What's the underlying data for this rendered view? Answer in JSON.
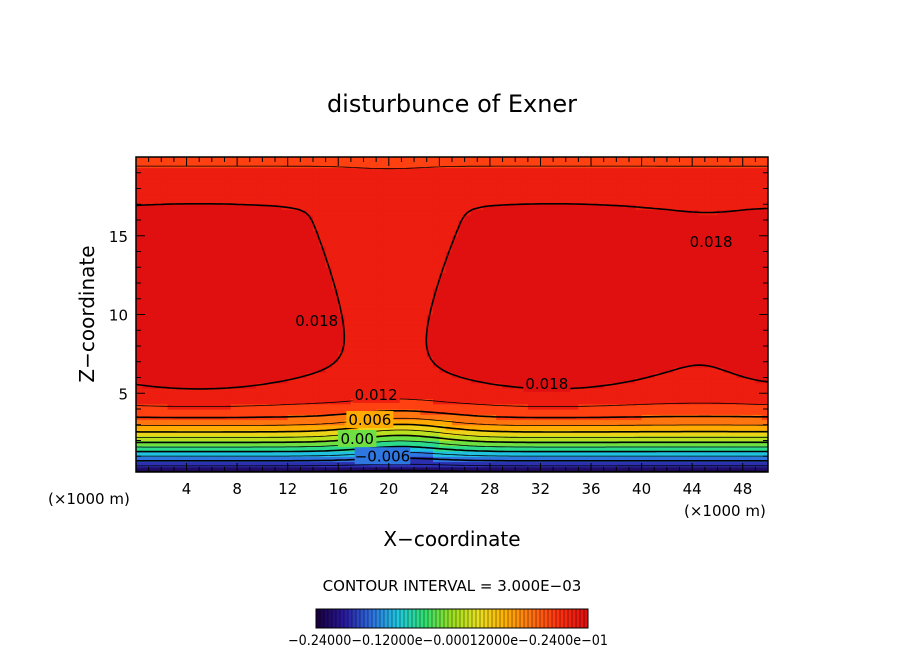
{
  "chart_data": {
    "type": "contour",
    "title": "disturbunce of Exner",
    "xlabel": "X−coordinate",
    "ylabel": "Z−coordinate",
    "x_unit_left": "(×1000 m)",
    "x_unit_right": "(×1000 m)",
    "xlim": [
      0,
      50
    ],
    "ylim": [
      0,
      20
    ],
    "x_ticks": [
      4,
      8,
      12,
      16,
      20,
      24,
      28,
      32,
      36,
      40,
      44,
      48
    ],
    "x_tick_labels": [
      "4",
      "8",
      "12",
      "16",
      "20",
      "24",
      "28",
      "32",
      "36",
      "40",
      "44",
      "48"
    ],
    "y_ticks": [
      5,
      10,
      15
    ],
    "y_tick_labels": [
      "5",
      "10",
      "15"
    ],
    "contour_interval_text": "CONTOUR INTERVAL = 3.000E−03",
    "contour_interval": 0.003,
    "value_range": [
      -0.012,
      0.024
    ],
    "contour_labels": [
      {
        "text": "0.018",
        "x": 14.3,
        "z": 9.6
      },
      {
        "text": "0.018",
        "x": 45.5,
        "z": 14.6
      },
      {
        "text": "0.018",
        "x": 32.5,
        "z": 5.6
      },
      {
        "text": "0.012",
        "x": 19.0,
        "z": 4.9
      },
      {
        "text": "0.006",
        "x": 18.5,
        "z": 3.3
      },
      {
        "text": "0.00",
        "x": 17.5,
        "z": 2.1
      },
      {
        "text": "−0.006",
        "x": 19.5,
        "z": 1.0
      }
    ],
    "colorbar": {
      "labels_text": "−0.24000−0.12000e−0.00012000e−0.2400e−01",
      "colormap": [
        "#1a0040",
        "#2a1aa0",
        "#2f6fe0",
        "#20c8e0",
        "#30e070",
        "#9ae020",
        "#e8e020",
        "#ffb000",
        "#ff7010",
        "#ff3010",
        "#e01010"
      ]
    }
  }
}
